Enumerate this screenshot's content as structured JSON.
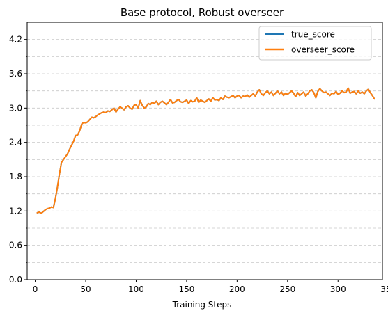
{
  "chart_data": {
    "type": "line",
    "title": "Base protocol, Robust overseer",
    "xlabel": "Training Steps",
    "ylabel": "",
    "xlim": [
      -8,
      344
    ],
    "ylim": [
      0.0,
      4.5
    ],
    "xticks": [
      0,
      50,
      100,
      150,
      200,
      250,
      300,
      350
    ],
    "xtick_labels": [
      "0",
      "50",
      "100",
      "150",
      "200",
      "250",
      "300",
      "350"
    ],
    "yticks": [
      0.0,
      0.6,
      1.2,
      1.8,
      2.4,
      3.0,
      3.6,
      4.2
    ],
    "ytick_labels": [
      "0.0",
      "0.6",
      "1.2",
      "1.8",
      "2.4",
      "3.0",
      "3.6",
      "4.2"
    ],
    "y_minor_ticks": [
      0.3,
      0.9,
      1.5,
      2.1,
      2.7,
      3.3,
      3.9
    ],
    "grid": "y-dashed",
    "legend_position": "top-right",
    "x": [
      2,
      4,
      6,
      8,
      10,
      12,
      14,
      16,
      18,
      20,
      22,
      24,
      26,
      28,
      30,
      32,
      34,
      36,
      38,
      40,
      42,
      44,
      46,
      48,
      50,
      52,
      54,
      56,
      58,
      60,
      62,
      64,
      66,
      68,
      70,
      72,
      74,
      76,
      78,
      80,
      82,
      84,
      86,
      88,
      90,
      92,
      94,
      96,
      98,
      100,
      102,
      104,
      106,
      108,
      110,
      112,
      114,
      116,
      118,
      120,
      122,
      124,
      126,
      128,
      130,
      132,
      134,
      136,
      138,
      140,
      142,
      144,
      146,
      148,
      150,
      152,
      154,
      156,
      158,
      160,
      162,
      164,
      166,
      168,
      170,
      172,
      174,
      176,
      178,
      180,
      182,
      184,
      186,
      188,
      190,
      192,
      194,
      196,
      198,
      200,
      202,
      204,
      206,
      208,
      210,
      212,
      214,
      216,
      218,
      220,
      222,
      224,
      226,
      228,
      230,
      232,
      234,
      236,
      238,
      240,
      242,
      244,
      246,
      248,
      250,
      252,
      254,
      256,
      258,
      260,
      262,
      264,
      266,
      268,
      270,
      272,
      274,
      276,
      278,
      280,
      282,
      284,
      286,
      288,
      290,
      292,
      294,
      296,
      298,
      300,
      302,
      304,
      306,
      308,
      310,
      312,
      314,
      316,
      318,
      320,
      322,
      324,
      326,
      328,
      330,
      332,
      334,
      336
    ],
    "series": [
      {
        "name": "true_score",
        "color": "#1f77b4",
        "values": [
          1.17,
          1.18,
          1.16,
          1.19,
          1.22,
          1.24,
          1.25,
          1.27,
          1.26,
          1.42,
          1.62,
          1.85,
          2.05,
          2.1,
          2.15,
          2.2,
          2.28,
          2.35,
          2.42,
          2.52,
          2.53,
          2.6,
          2.72,
          2.75,
          2.74,
          2.76,
          2.8,
          2.84,
          2.83,
          2.85,
          2.88,
          2.9,
          2.92,
          2.93,
          2.92,
          2.95,
          2.94,
          2.97,
          3.0,
          2.93,
          2.98,
          3.02,
          3.0,
          2.97,
          3.02,
          3.04,
          3.0,
          2.98,
          3.05,
          3.06,
          3.0,
          3.13,
          3.05,
          3.0,
          3.02,
          3.08,
          3.06,
          3.1,
          3.08,
          3.12,
          3.06,
          3.1,
          3.12,
          3.09,
          3.06,
          3.1,
          3.15,
          3.09,
          3.1,
          3.13,
          3.15,
          3.11,
          3.1,
          3.12,
          3.14,
          3.08,
          3.13,
          3.11,
          3.12,
          3.18,
          3.1,
          3.14,
          3.12,
          3.1,
          3.13,
          3.16,
          3.12,
          3.18,
          3.14,
          3.15,
          3.13,
          3.18,
          3.15,
          3.21,
          3.19,
          3.18,
          3.2,
          3.22,
          3.18,
          3.21,
          3.22,
          3.18,
          3.21,
          3.2,
          3.23,
          3.19,
          3.22,
          3.25,
          3.21,
          3.28,
          3.32,
          3.25,
          3.22,
          3.27,
          3.3,
          3.25,
          3.28,
          3.22,
          3.26,
          3.3,
          3.25,
          3.28,
          3.22,
          3.26,
          3.24,
          3.27,
          3.3,
          3.26,
          3.2,
          3.27,
          3.22,
          3.25,
          3.28,
          3.21,
          3.25,
          3.3,
          3.32,
          3.27,
          3.18,
          3.29,
          3.34,
          3.3,
          3.27,
          3.28,
          3.25,
          3.22,
          3.26,
          3.25,
          3.29,
          3.24,
          3.26,
          3.3,
          3.27,
          3.28,
          3.35,
          3.26,
          3.28,
          3.29,
          3.25,
          3.3,
          3.26,
          3.28,
          3.25,
          3.3,
          3.33,
          3.27,
          3.22,
          3.16
        ]
      },
      {
        "name": "overseer_score",
        "color": "#ff7f0e",
        "values": [
          1.17,
          1.18,
          1.16,
          1.19,
          1.22,
          1.24,
          1.25,
          1.27,
          1.26,
          1.42,
          1.62,
          1.85,
          2.05,
          2.1,
          2.15,
          2.2,
          2.28,
          2.35,
          2.42,
          2.52,
          2.53,
          2.6,
          2.72,
          2.75,
          2.74,
          2.76,
          2.8,
          2.84,
          2.83,
          2.85,
          2.88,
          2.9,
          2.92,
          2.93,
          2.92,
          2.95,
          2.94,
          2.97,
          3.0,
          2.93,
          2.98,
          3.02,
          3.0,
          2.97,
          3.02,
          3.04,
          3.0,
          2.98,
          3.05,
          3.06,
          3.0,
          3.13,
          3.05,
          3.0,
          3.02,
          3.08,
          3.06,
          3.1,
          3.08,
          3.12,
          3.06,
          3.1,
          3.12,
          3.09,
          3.06,
          3.1,
          3.15,
          3.09,
          3.1,
          3.13,
          3.15,
          3.11,
          3.1,
          3.12,
          3.14,
          3.08,
          3.13,
          3.11,
          3.12,
          3.18,
          3.1,
          3.14,
          3.12,
          3.1,
          3.13,
          3.16,
          3.12,
          3.18,
          3.14,
          3.15,
          3.13,
          3.18,
          3.15,
          3.21,
          3.19,
          3.18,
          3.2,
          3.22,
          3.18,
          3.21,
          3.22,
          3.18,
          3.21,
          3.2,
          3.23,
          3.19,
          3.22,
          3.25,
          3.21,
          3.28,
          3.32,
          3.25,
          3.22,
          3.27,
          3.3,
          3.25,
          3.28,
          3.22,
          3.26,
          3.3,
          3.25,
          3.28,
          3.22,
          3.26,
          3.24,
          3.27,
          3.3,
          3.26,
          3.2,
          3.27,
          3.22,
          3.25,
          3.28,
          3.21,
          3.25,
          3.3,
          3.32,
          3.27,
          3.18,
          3.29,
          3.34,
          3.3,
          3.27,
          3.28,
          3.25,
          3.22,
          3.26,
          3.25,
          3.29,
          3.24,
          3.26,
          3.3,
          3.27,
          3.28,
          3.35,
          3.26,
          3.28,
          3.29,
          3.25,
          3.3,
          3.26,
          3.28,
          3.25,
          3.3,
          3.33,
          3.27,
          3.22,
          3.16
        ]
      }
    ]
  }
}
